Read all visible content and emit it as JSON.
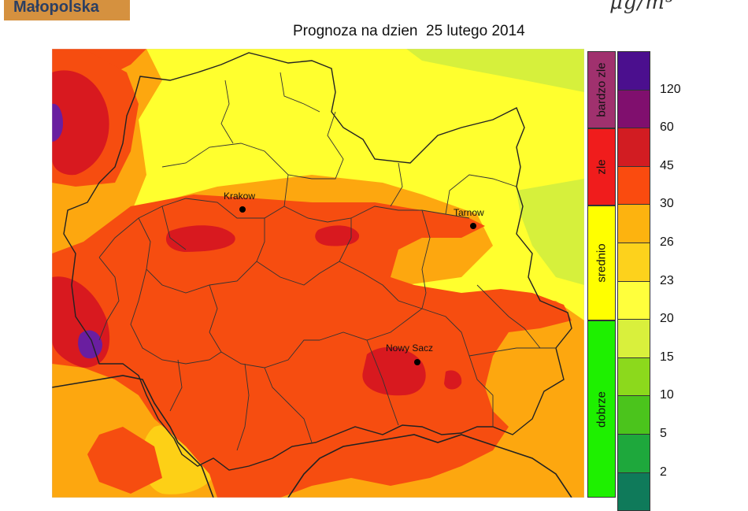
{
  "header": {
    "logo_text": "Małopolska",
    "unit": "μg/m³",
    "title": "Prognoza na dzien  25 lutego 2014"
  },
  "map": {
    "cities": [
      {
        "name": "Krakow"
      },
      {
        "name": "Tarnow"
      },
      {
        "name": "Nowy Sacz"
      }
    ]
  },
  "legend": {
    "categories": [
      {
        "label": "bardzo zle",
        "color": "#a0316e"
      },
      {
        "label": "zle",
        "color": "#f01c1c"
      },
      {
        "label": "srednio",
        "color": "#ffff00"
      },
      {
        "label": "dobrze",
        "color": "#1ef000"
      }
    ],
    "swatches": [
      "#4b0f8e",
      "#800f6e",
      "#d21c22",
      "#fa4b0f",
      "#fdb30f",
      "#fdd21c",
      "#ffff3c",
      "#d9f03c",
      "#8cd91c",
      "#4bc41c",
      "#1ea83c",
      "#0f7a5a"
    ],
    "ticks": [
      "120",
      "60",
      "45",
      "30",
      "26",
      "23",
      "20",
      "15",
      "10",
      "5",
      "2"
    ]
  },
  "colors": {
    "very_high": "#6a1ea0",
    "high_dark": "#d8191f",
    "high": "#f64d10",
    "elevated": "#fda70f",
    "medium_high": "#fdd016",
    "medium": "#ffff2e",
    "low": "#d6f03c",
    "border": "#222222"
  }
}
